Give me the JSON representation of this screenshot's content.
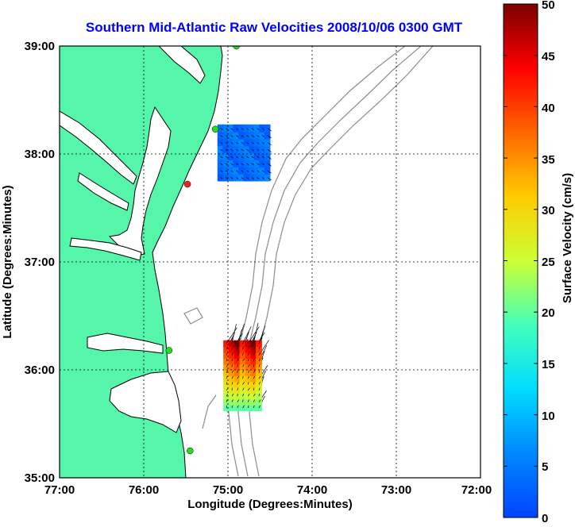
{
  "title": "Southern Mid-Atlantic Raw Velocities 2008/10/06 0300 GMT",
  "xlabel": "Longitude (Degrees:Minutes)",
  "ylabel": "Latitude (Degrees:Minutes)",
  "x_ticks": [
    "77:00",
    "76:00",
    "75:00",
    "74:00",
    "73:00",
    "72:00"
  ],
  "y_ticks": [
    "39:00",
    "38:00",
    "37:00",
    "36:00",
    "35:00"
  ],
  "colorbar": {
    "label": "Surface Velocity (cm/s)",
    "ticks": [
      "0",
      "5",
      "10",
      "15",
      "20",
      "25",
      "30",
      "35",
      "40",
      "45",
      "50"
    ],
    "range": [
      0,
      50
    ],
    "colormap": "jet"
  },
  "colors": {
    "land": "#55f5aa",
    "coastline": "#000000",
    "bathymetry": "#8c8c8c",
    "title": "#0000ff",
    "station": "#22dd22",
    "station_alert": "#ee2222"
  },
  "map_extent": {
    "lon": [
      -77,
      -72
    ],
    "lat": [
      35,
      39
    ]
  },
  "stations": [
    {
      "lon": -74.9,
      "lat": 39.0,
      "status": "ok"
    },
    {
      "lon": -75.15,
      "lat": 38.23,
      "status": "ok"
    },
    {
      "lon": -75.48,
      "lat": 37.72,
      "status": "alert"
    },
    {
      "lon": -75.7,
      "lat": 36.18,
      "status": "ok"
    },
    {
      "lon": -75.45,
      "lat": 35.25,
      "status": "ok"
    }
  ],
  "velocity_fields": [
    {
      "region": "north",
      "lon_range": [
        -75.12,
        -74.5
      ],
      "lat_range": [
        37.75,
        38.27
      ],
      "speed_cm_s": [
        2,
        6
      ]
    },
    {
      "region": "south",
      "lon_range": [
        -75.05,
        -74.6
      ],
      "lat_range": [
        35.62,
        36.27
      ],
      "speed_cm_s": [
        20,
        50
      ]
    }
  ]
}
